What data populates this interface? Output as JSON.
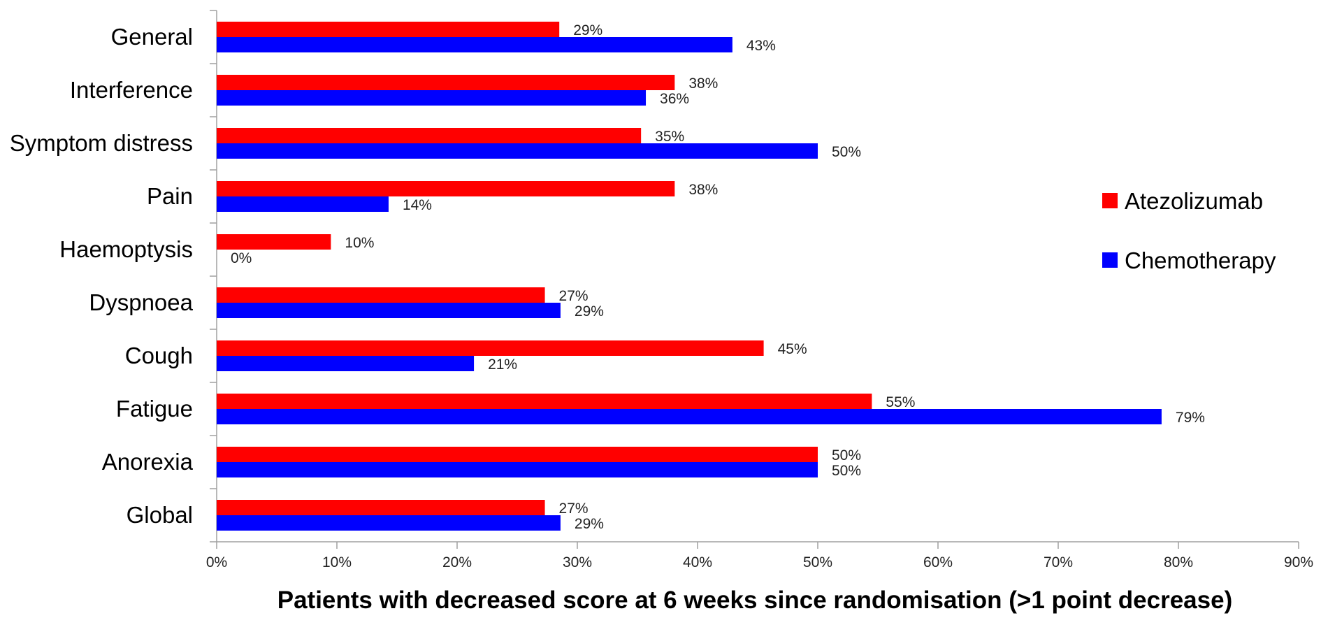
{
  "chart_data": {
    "type": "bar",
    "orientation": "horizontal",
    "categories": [
      "General",
      "Interference",
      "Symptom distress",
      "Pain",
      "Haemoptysis",
      "Dyspnoea",
      "Cough",
      "Fatigue",
      "Anorexia",
      "Global"
    ],
    "series": [
      {
        "name": "Atezolizumab",
        "color": "#ff0000",
        "values": [
          28.5,
          38.1,
          35.3,
          38.1,
          9.5,
          27.3,
          45.5,
          54.5,
          50.0,
          27.3
        ],
        "labels": [
          "29%",
          "38%",
          "35%",
          "38%",
          "10%",
          "27%",
          "45%",
          "55%",
          "50%",
          "27%"
        ]
      },
      {
        "name": "Chemotherapy",
        "color": "#0000ff",
        "values": [
          42.9,
          35.7,
          50.0,
          14.3,
          0,
          28.6,
          21.4,
          78.6,
          50.0,
          28.6
        ],
        "labels": [
          "43%",
          "36%",
          "50%",
          "14%",
          "0%",
          "29%",
          "21%",
          "79%",
          "50%",
          "29%"
        ]
      }
    ],
    "title": "",
    "xlabel": "Patients with decreased score at 6 weeks since randomisation (>1 point decrease)",
    "ylabel": "",
    "xlim": [
      0,
      90
    ],
    "xticks": [
      "0%",
      "10%",
      "20%",
      "30%",
      "40%",
      "50%",
      "60%",
      "70%",
      "80%",
      "90%"
    ],
    "grid": false,
    "legend": "right"
  }
}
